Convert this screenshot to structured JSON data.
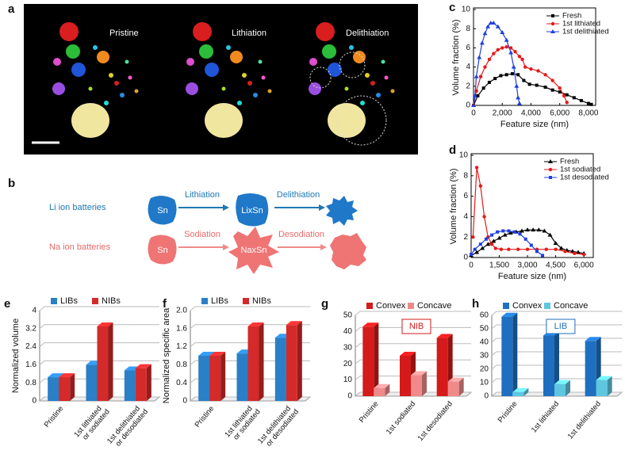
{
  "panel_labels": [
    "a",
    "b",
    "c",
    "d",
    "e",
    "f",
    "g",
    "h"
  ],
  "image": {
    "labels": [
      "Pristine",
      "Lithiation",
      "Delithiation"
    ]
  },
  "diagram": {
    "rows": [
      {
        "label": "Li ion batteries",
        "start": "Sn",
        "step1": "Lithiation",
        "mid": "LixSn",
        "step2": "Delithiation"
      },
      {
        "label": "Na ion batteries",
        "start": "Sn",
        "step1": "Sodiation",
        "mid": "NaxSn",
        "step2": "Desodiation"
      }
    ]
  },
  "chart_data": [
    {
      "type": "line",
      "xlabel": "Feature size (nm)",
      "ylabel": "Volume fraction (%)",
      "xlim": [
        0,
        8500
      ],
      "xticks": [
        0,
        {
          "value": 2000,
          "label": "2,000"
        },
        {
          "value": 4000,
          "label": "4,000"
        },
        {
          "value": 6000,
          "label": "6,000"
        },
        {
          "value": 8000,
          "label": "8,000"
        }
      ],
      "ylim": [
        0,
        10
      ],
      "yticks": [
        0,
        2,
        4,
        6,
        8,
        10
      ],
      "legend": "upper right",
      "series": [
        {
          "name": "Fresh",
          "color": "#000000",
          "marker": "square",
          "x": [
            0,
            300,
            700,
            1100,
            1500,
            1900,
            2300,
            2700,
            3100,
            3500,
            3900,
            4400,
            5000,
            5500,
            6000,
            6500,
            7000,
            7500,
            8000,
            8200
          ],
          "values": [
            0,
            1.0,
            1.8,
            2.4,
            2.8,
            3.1,
            3.2,
            3.3,
            3.2,
            2.6,
            2.2,
            2.1,
            1.9,
            1.6,
            1.4,
            1.1,
            0.8,
            0.5,
            0.2,
            0.1
          ]
        },
        {
          "name": "1st lithiated",
          "color": "#e31a1c",
          "marker": "circle",
          "x": [
            0,
            200,
            500,
            800,
            1100,
            1400,
            1700,
            2000,
            2300,
            2600,
            2900,
            3200,
            3400,
            3600,
            4000,
            4500,
            5000,
            5500,
            6000,
            6300,
            6500
          ],
          "values": [
            0,
            1.5,
            3.0,
            4.0,
            4.8,
            5.4,
            5.8,
            6.0,
            6.1,
            6.0,
            5.6,
            5.1,
            4.8,
            4.0,
            3.8,
            3.6,
            3.2,
            2.6,
            1.8,
            1.0,
            0.3
          ]
        },
        {
          "name": "1st delithiated",
          "color": "#1f3fe0",
          "marker": "triangle",
          "x": [
            0,
            100,
            200,
            400,
            600,
            800,
            1000,
            1200,
            1400,
            1700,
            2000,
            2300,
            2600,
            2800,
            3000,
            3100,
            3200
          ],
          "values": [
            0,
            1.0,
            3.0,
            5.0,
            6.5,
            7.5,
            8.2,
            8.6,
            8.6,
            8.2,
            7.6,
            6.8,
            5.5,
            4.0,
            2.0,
            0.8,
            0.2
          ]
        }
      ]
    },
    {
      "type": "line",
      "xlabel": "Feature size (nm)",
      "ylabel": "Volume fraction (%)",
      "xlim": [
        0,
        6500
      ],
      "xticks": [
        0,
        {
          "value": 1500,
          "label": "1,500"
        },
        {
          "value": 3000,
          "label": "3,000"
        },
        {
          "value": 4500,
          "label": "4,500"
        },
        {
          "value": 6000,
          "label": "6,000"
        }
      ],
      "ylim": [
        0,
        10
      ],
      "yticks": [
        0,
        2,
        4,
        6,
        8,
        10
      ],
      "legend": "upper right",
      "series": [
        {
          "name": "Fresh",
          "color": "#000000",
          "marker": "triangle",
          "x": [
            0,
            300,
            600,
            900,
            1200,
            1500,
            1800,
            2100,
            2400,
            2700,
            3000,
            3300,
            3600,
            3900,
            4200,
            4500,
            4800,
            5100,
            5400,
            5700,
            6000
          ],
          "values": [
            0.2,
            0.5,
            0.9,
            1.3,
            1.6,
            1.9,
            2.2,
            2.4,
            2.5,
            2.6,
            2.7,
            2.7,
            2.7,
            2.6,
            2.2,
            1.4,
            0.9,
            0.7,
            0.6,
            0.5,
            0.4
          ]
        },
        {
          "name": "1st sodiated",
          "color": "#e31a1c",
          "marker": "circle",
          "x": [
            100,
            300,
            500,
            700,
            900,
            1100,
            1300,
            1600,
            2000,
            2500,
            3000,
            3500,
            4000,
            4500,
            5000,
            5500,
            6000
          ],
          "values": [
            2.0,
            8.8,
            7.0,
            4.0,
            2.0,
            1.3,
            0.9,
            0.8,
            0.8,
            0.8,
            0.8,
            0.8,
            0.8,
            0.8,
            0.6,
            0.4,
            0.3
          ]
        },
        {
          "name": "1st desodiated",
          "color": "#1f3fe0",
          "marker": "square",
          "x": [
            0,
            200,
            500,
            800,
            1100,
            1400,
            1700,
            2000,
            2300,
            2600,
            2900,
            3200,
            3500,
            3800
          ],
          "values": [
            0.3,
            0.8,
            1.3,
            1.8,
            2.2,
            2.5,
            2.6,
            2.6,
            2.5,
            2.3,
            1.8,
            1.2,
            0.6,
            0.2
          ]
        }
      ]
    },
    {
      "type": "bar3d",
      "ylabel": "Normalized volume",
      "categories": [
        [
          "Pristine"
        ],
        [
          "1st lithiated",
          "or sodiated"
        ],
        [
          "1st delithiated",
          "or desodiated"
        ]
      ],
      "ylim": [
        0,
        4
      ],
      "yticks": [
        0,
        0.8,
        1.6,
        2.4,
        3.2,
        4
      ],
      "legend": "top",
      "series": [
        {
          "name": "LIBs",
          "color": "#2a7fc6",
          "values": [
            1.05,
            1.6,
            1.35
          ]
        },
        {
          "name": "NIBs",
          "color": "#d42a2a",
          "values": [
            1.05,
            3.3,
            1.45
          ]
        }
      ]
    },
    {
      "type": "bar3d",
      "ylabel": "Normalized specific area",
      "categories": [
        [
          "Pristine"
        ],
        [
          "1st lithiated",
          "or sodiated"
        ],
        [
          "1st delithiated",
          "or desodiated"
        ]
      ],
      "ylim": [
        0,
        2
      ],
      "yticks": [
        0,
        0.4,
        0.8,
        1.2,
        1.6,
        {
          "value": 2,
          "label": "2.0"
        }
      ],
      "legend": "top",
      "series": [
        {
          "name": "LIBs",
          "color": "#2a7fc6",
          "values": [
            1.0,
            1.05,
            1.4
          ]
        },
        {
          "name": "NIBs",
          "color": "#d42a2a",
          "values": [
            1.0,
            1.65,
            1.68
          ]
        }
      ]
    },
    {
      "type": "bar3d",
      "annotation": "NIB",
      "categories": [
        [
          "Pristine"
        ],
        [
          "1st sodiated"
        ],
        [
          "1st desodiated"
        ]
      ],
      "ylim": [
        0,
        50
      ],
      "yticks": [
        0,
        10,
        20,
        30,
        40,
        50
      ],
      "legend": "top",
      "series": [
        {
          "name": "Convex",
          "color": "#d41a1a",
          "values": [
            43,
            25,
            36
          ]
        },
        {
          "name": "Concave",
          "color": "#f08a8a",
          "values": [
            5,
            13,
            9
          ]
        }
      ]
    },
    {
      "type": "bar3d",
      "annotation": "LIB",
      "categories": [
        [
          "Pristine"
        ],
        [
          "1st lithiated"
        ],
        [
          "1st delithiated"
        ]
      ],
      "ylim": [
        0,
        60
      ],
      "yticks": [
        0,
        10,
        20,
        30,
        40,
        50,
        60
      ],
      "legend": "top",
      "series": [
        {
          "name": "Convex",
          "color": "#1f6fc0",
          "values": [
            59,
            45,
            41
          ]
        },
        {
          "name": "Concave",
          "color": "#5fc6e0",
          "values": [
            3,
            9,
            12
          ]
        }
      ]
    }
  ]
}
